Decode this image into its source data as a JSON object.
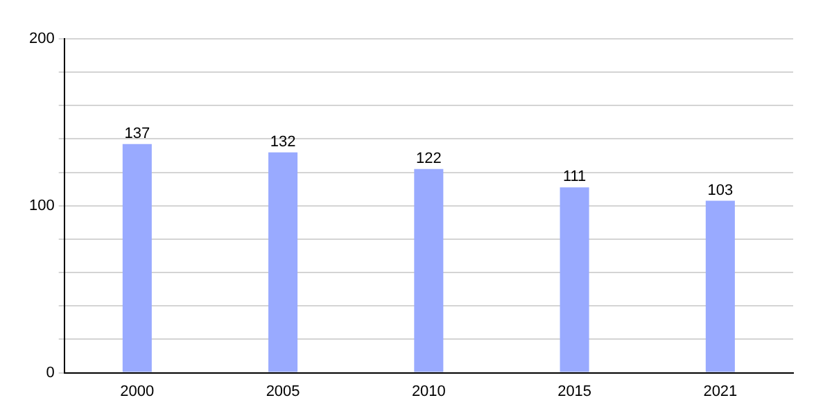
{
  "chart_data": {
    "type": "bar",
    "categories": [
      "2000",
      "2005",
      "2010",
      "2015",
      "2021"
    ],
    "values": [
      137,
      132,
      122,
      111,
      103
    ],
    "color": "#99aaff",
    "data_labels": true,
    "grid": "y",
    "legend": false,
    "ylim": [
      0,
      200
    ],
    "yticks": [
      0,
      {
        "value": 20,
        "label": null
      },
      {
        "value": 40,
        "label": null
      },
      {
        "value": 60,
        "label": null
      },
      {
        "value": 80,
        "label": null
      },
      100,
      {
        "value": 120,
        "label": null
      },
      {
        "value": 140,
        "label": null
      },
      {
        "value": 160,
        "label": null
      },
      {
        "value": 180,
        "label": null
      },
      200
    ]
  }
}
